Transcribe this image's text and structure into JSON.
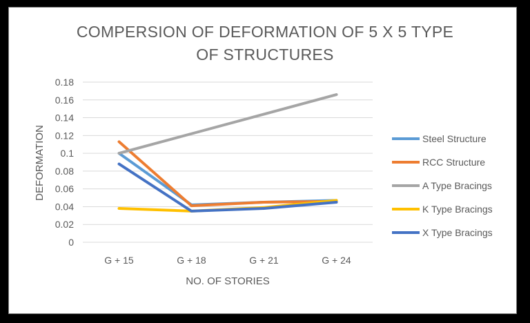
{
  "chart_data": {
    "type": "line",
    "title": "COMPERSION OF DEFORMATION OF 5 X 5 TYPE OF STRUCTURES",
    "title_lines": [
      "COMPERSION OF DEFORMATION OF 5 X 5 TYPE",
      "OF STRUCTURES"
    ],
    "xlabel": "NO. OF STORIES",
    "ylabel": "DEFORMATION",
    "categories": [
      "G + 15",
      "G + 18",
      "G + 21",
      "G + 24"
    ],
    "ylim": [
      0,
      0.18
    ],
    "yticks": [
      "0",
      "0.02",
      "0.04",
      "0.06",
      "0.08",
      "0.1",
      "0.12",
      "0.14",
      "0.16",
      "0.18"
    ],
    "grid": true,
    "legend_position": "right",
    "series": [
      {
        "name": "Steel Structure",
        "color": "#5B9BD5",
        "values": [
          0.1,
          0.042,
          0.045,
          0.047
        ]
      },
      {
        "name": "RCC Structure",
        "color": "#ED7D31",
        "values": [
          0.113,
          0.041,
          0.045,
          0.046
        ]
      },
      {
        "name": "A Type Bracings",
        "color": "#A5A5A5",
        "values": [
          0.1,
          0.122,
          0.144,
          0.166
        ]
      },
      {
        "name": "K Type Bracings",
        "color": "#FFC000",
        "values": [
          0.038,
          0.035,
          0.039,
          0.047
        ]
      },
      {
        "name": "X Type Bracings",
        "color": "#4472C4",
        "values": [
          0.088,
          0.035,
          0.038,
          0.045
        ]
      }
    ]
  }
}
